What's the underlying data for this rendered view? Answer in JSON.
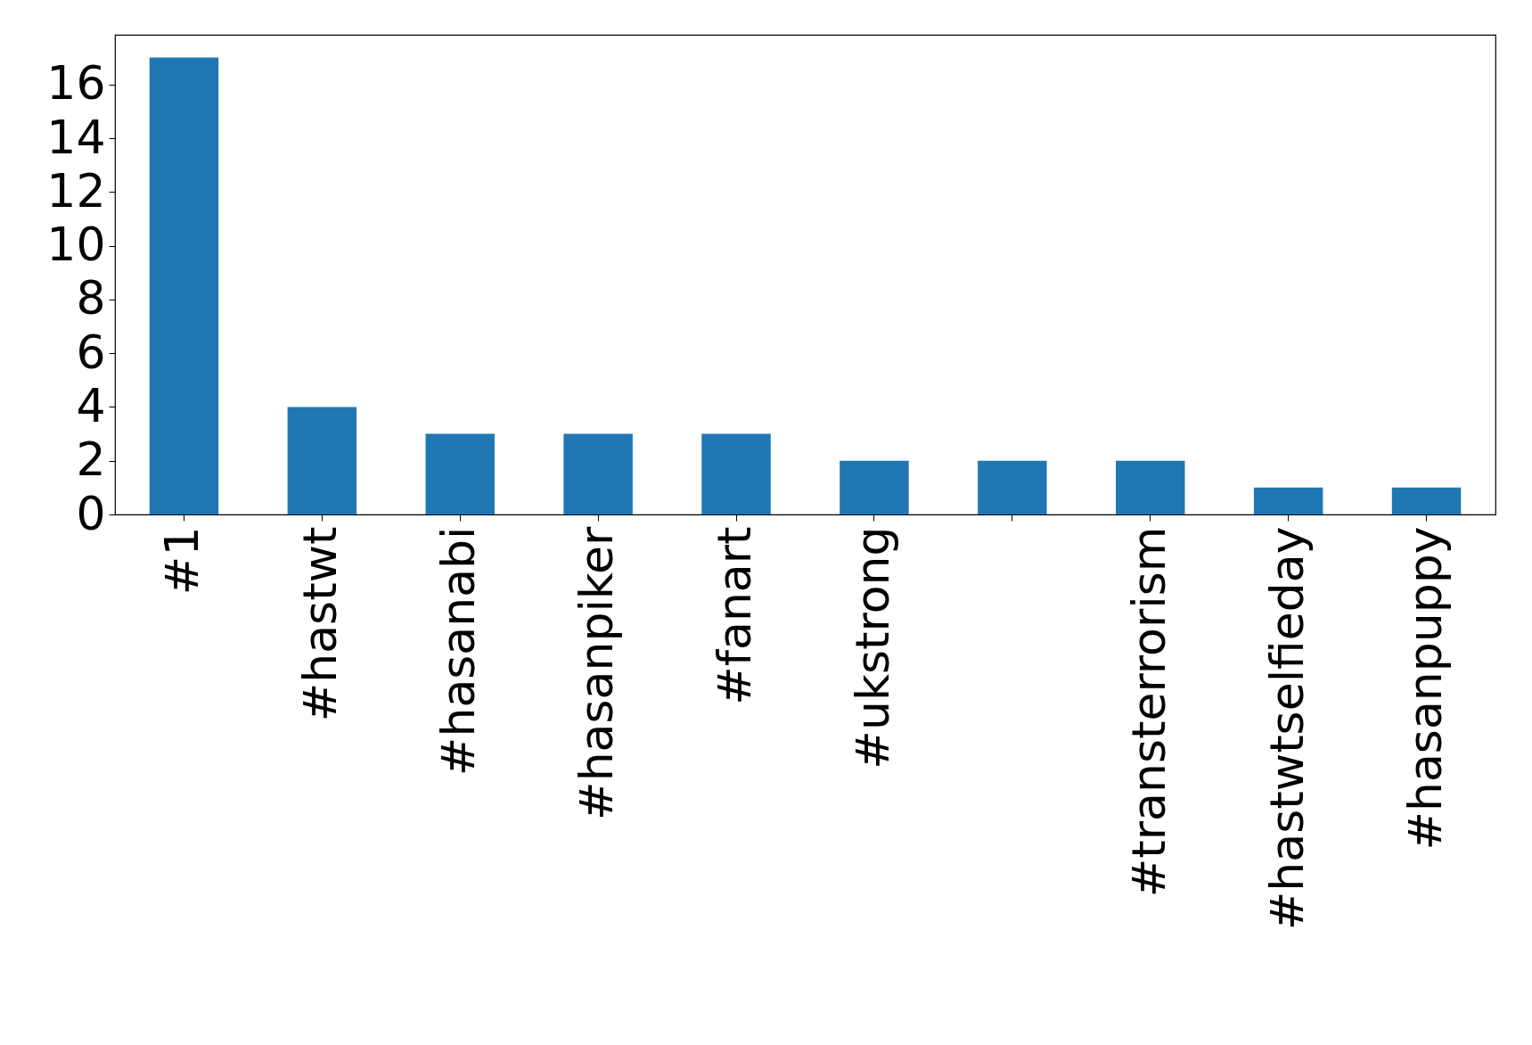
{
  "chart_data": {
    "type": "bar",
    "categories": [
      "#1",
      "#hastwt",
      "#hasanabi",
      "#hasanpiker",
      "#fanart",
      "#ukstrong",
      null,
      "#transterrorism",
      "#hastwtselfieday",
      "#hasanpuppy"
    ],
    "values": [
      17,
      4,
      3,
      3,
      3,
      2,
      2,
      2,
      1,
      1
    ],
    "color": "#1f77b4",
    "ylim": [
      0,
      17.85
    ],
    "yticks": [
      0,
      2,
      4,
      6,
      8,
      10,
      12,
      14,
      16
    ],
    "grid": false
  }
}
